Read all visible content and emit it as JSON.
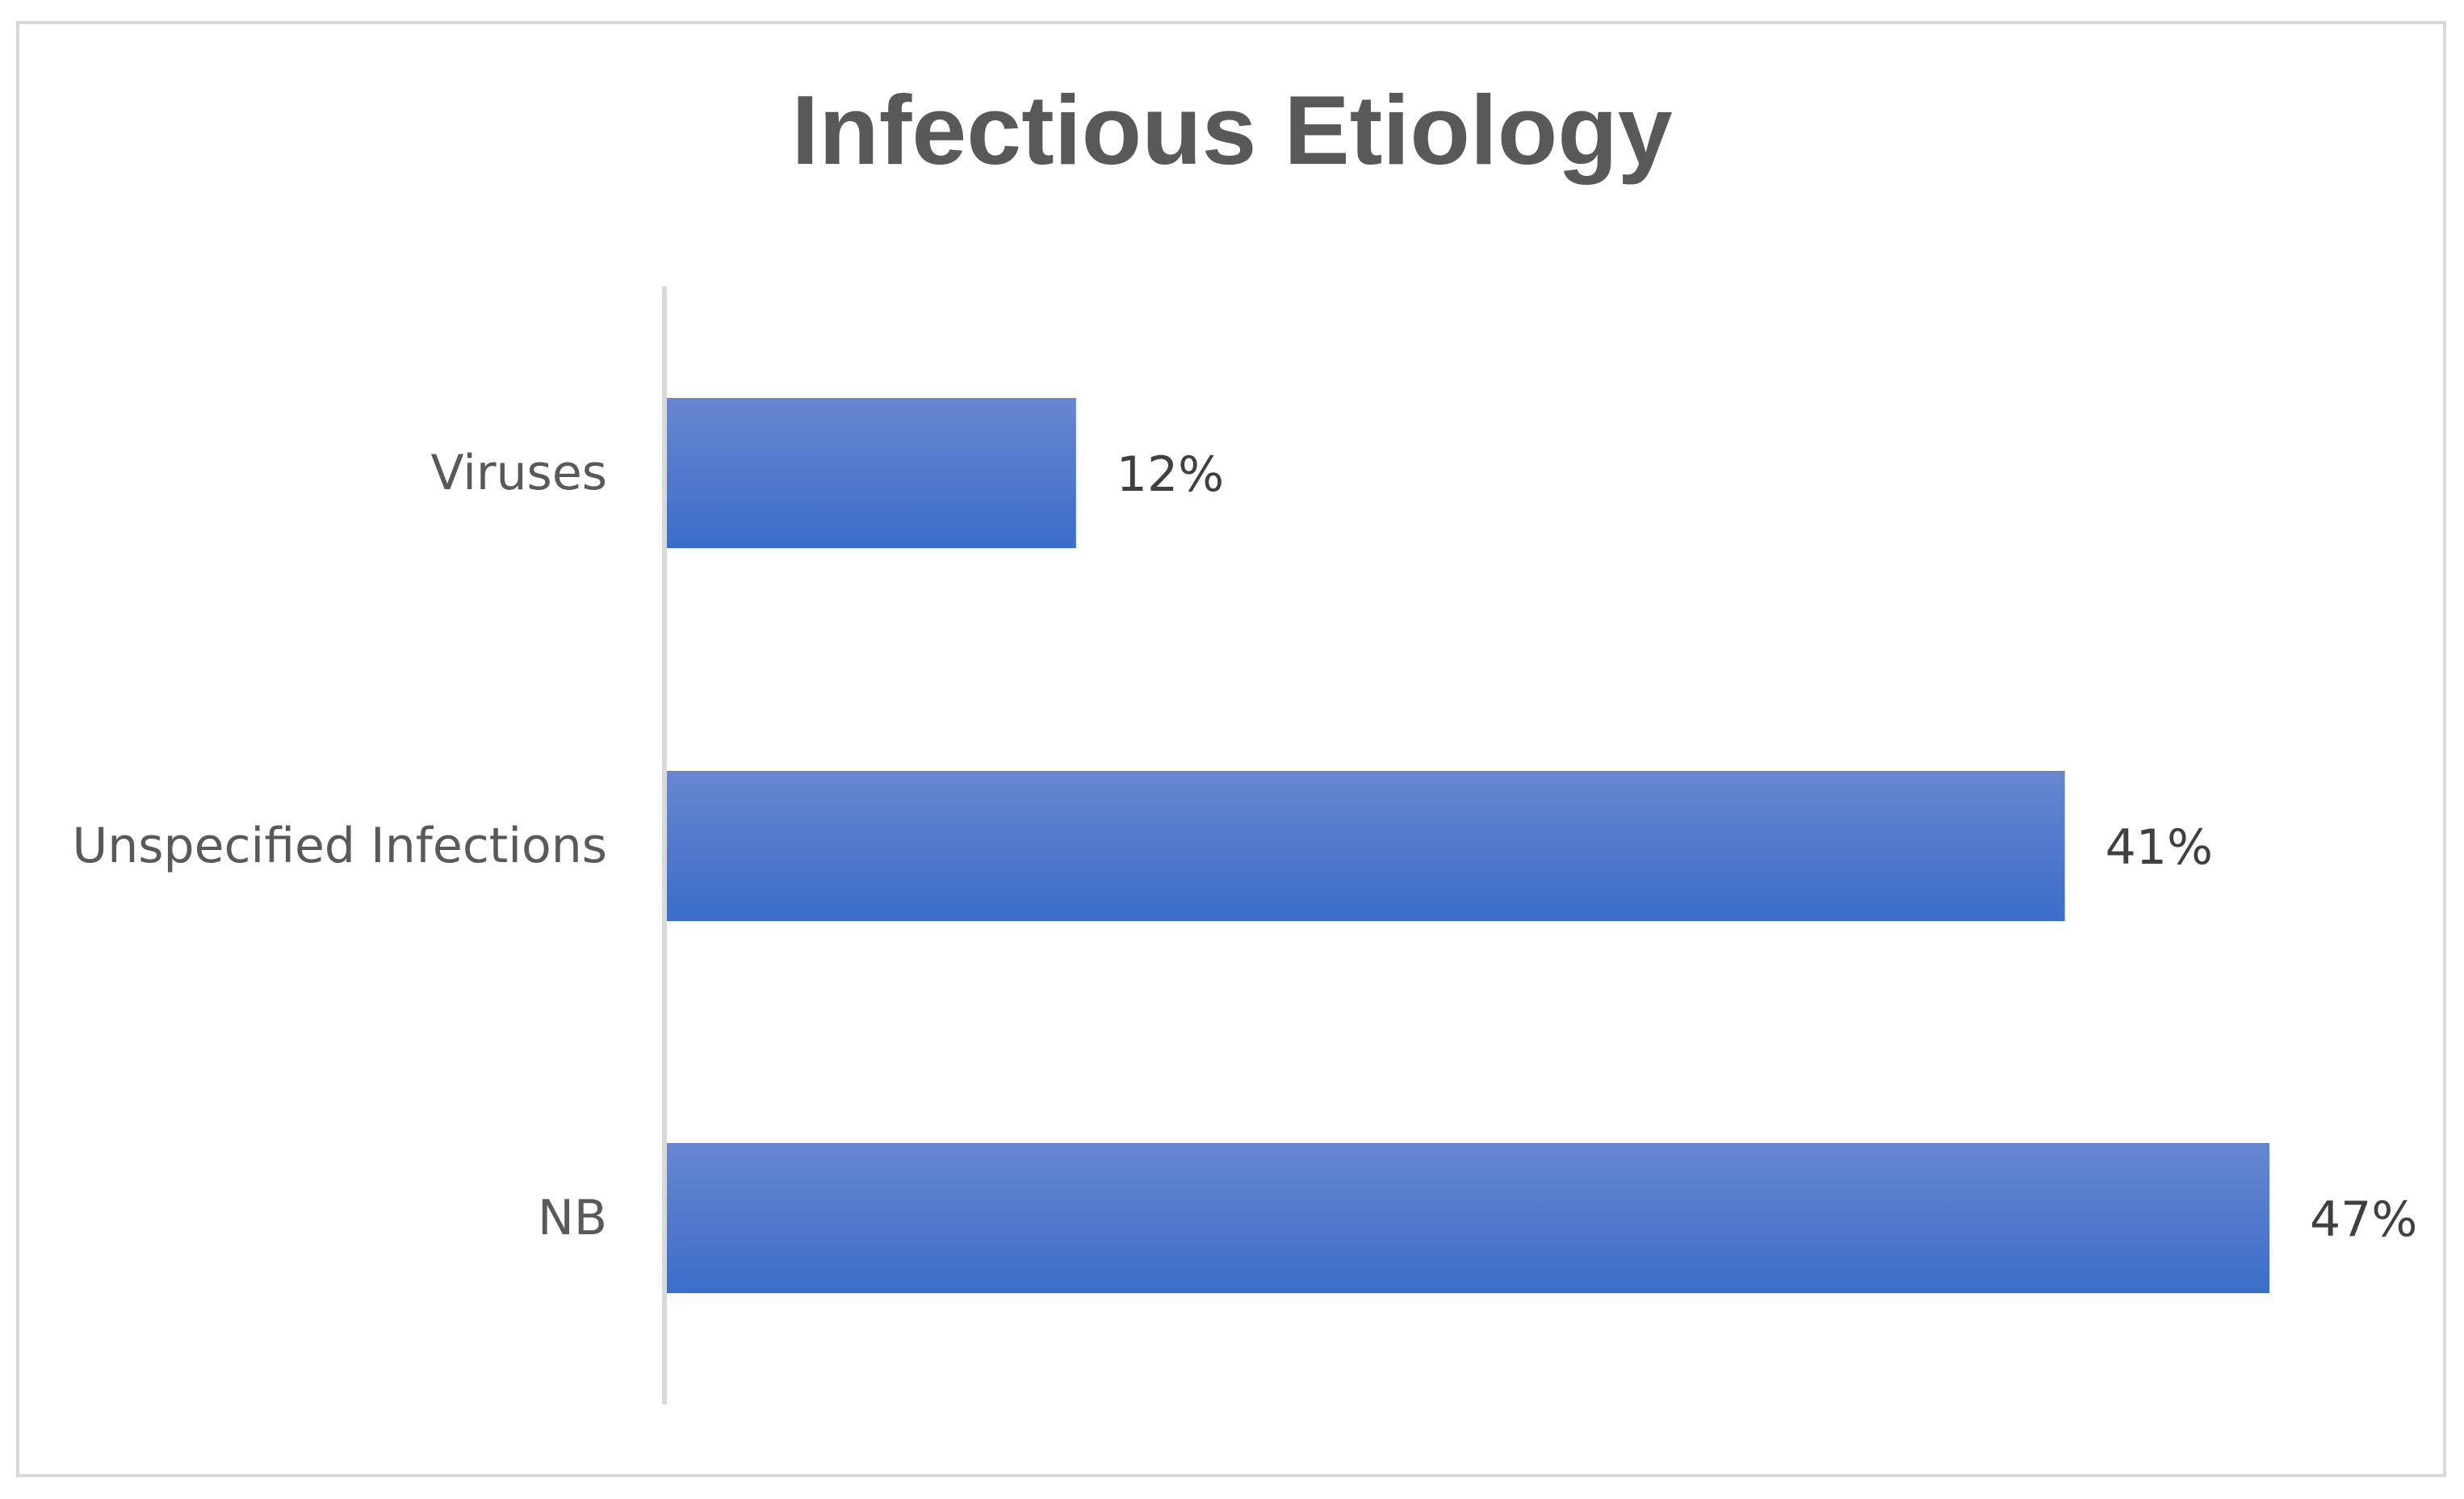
{
  "chart_data": {
    "type": "bar",
    "orientation": "horizontal",
    "title": "Infectious Etiology",
    "categories": [
      "Viruses",
      "Unspecified Infections",
      "NB"
    ],
    "values": [
      12,
      41,
      47
    ],
    "data_labels": [
      "12%",
      "41%",
      "47%"
    ],
    "unit": "%",
    "xlim": [
      0,
      50
    ],
    "grid": false,
    "legend": "none",
    "colors": {
      "bar_top": "#6787cf",
      "bar_bottom": "#3b6dc9",
      "axis": "#d9d9d9",
      "text": "#595959"
    }
  }
}
